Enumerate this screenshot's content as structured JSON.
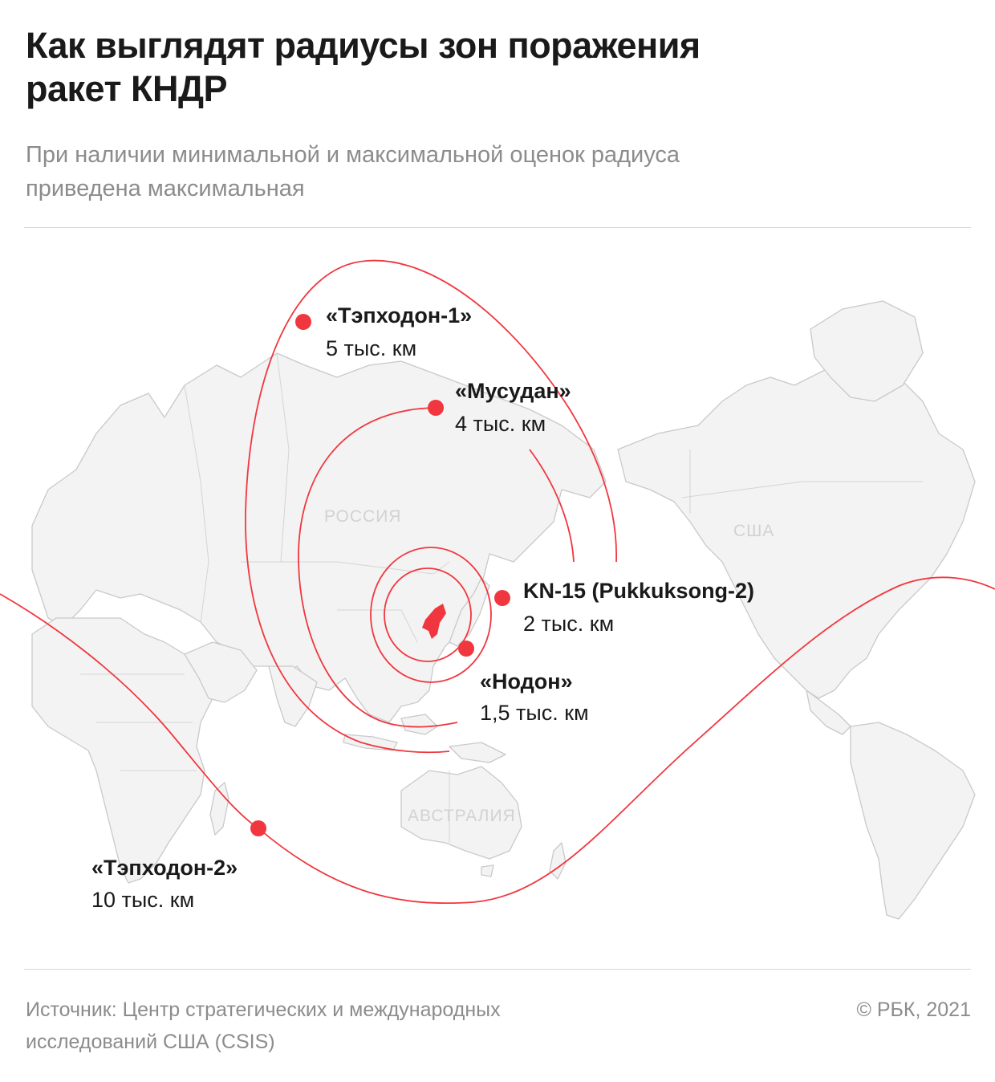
{
  "header": {
    "title_line1": "Как выглядят радиусы зон поражения",
    "title_line2": "ракет КНДР",
    "subtitle_line1": "При наличии минимальной и максимальной оценок радиуса",
    "subtitle_line2": "приведена максимальная"
  },
  "map": {
    "regions": {
      "russia": "РОССИЯ",
      "usa": "США",
      "australia": "АВСТРАЛИЯ"
    },
    "colors": {
      "range_line": "#f0373f",
      "land": "#f3f3f3",
      "borders": "#c9c9c9",
      "north_korea": "#f0373f"
    },
    "missiles": [
      {
        "id": "taepodong1",
        "name": "«Тэпходон-1»",
        "range": "5 тыс. км",
        "range_km": 5000
      },
      {
        "id": "musudan",
        "name": "«Мусудан»",
        "range": "4 тыс. км",
        "range_km": 4000
      },
      {
        "id": "kn15",
        "name": "KN-15 (Pukkuksong-2)",
        "range": "2 тыс. км",
        "range_km": 2000
      },
      {
        "id": "nodong",
        "name": "«Нодон»",
        "range": "1,5 тыс. км",
        "range_km": 1500
      },
      {
        "id": "taepodong2",
        "name": "«Тэпходон-2»",
        "range": "10 тыс. км",
        "range_km": 10000
      }
    ]
  },
  "footer": {
    "source_line1": "Источник: Центр стратегических и международных",
    "source_line2": "исследований США (CSIS)",
    "copyright": "© РБК, 2021"
  }
}
